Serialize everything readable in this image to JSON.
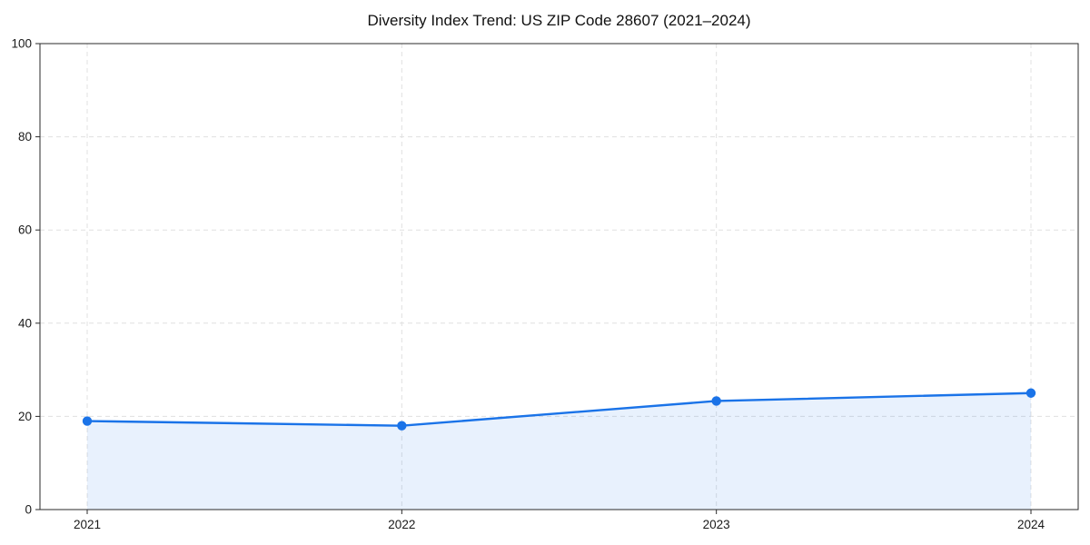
{
  "chart_data": {
    "type": "area",
    "title": "Diversity Index Trend: US ZIP Code 28607 (2021–2024)",
    "series_name": "Diversity Index",
    "categories": [
      "2021",
      "2022",
      "2023",
      "2024"
    ],
    "values": [
      19,
      18,
      23.3,
      25
    ],
    "xlabel": "",
    "ylabel": "",
    "ylim": [
      0,
      100
    ],
    "y_ticks": [
      0,
      20,
      40,
      60,
      80,
      100
    ],
    "grid": "dashed-both-axes",
    "legend": "none",
    "marker": "circle",
    "colors": {
      "line": "#1a73e8",
      "marker": "#1a73e8",
      "fill": "rgba(26,115,232,0.10)",
      "grid": "#e0e0e0",
      "spine": "#2a2a2a",
      "tick_text": "#1a1a1a",
      "background": "#ffffff"
    }
  }
}
